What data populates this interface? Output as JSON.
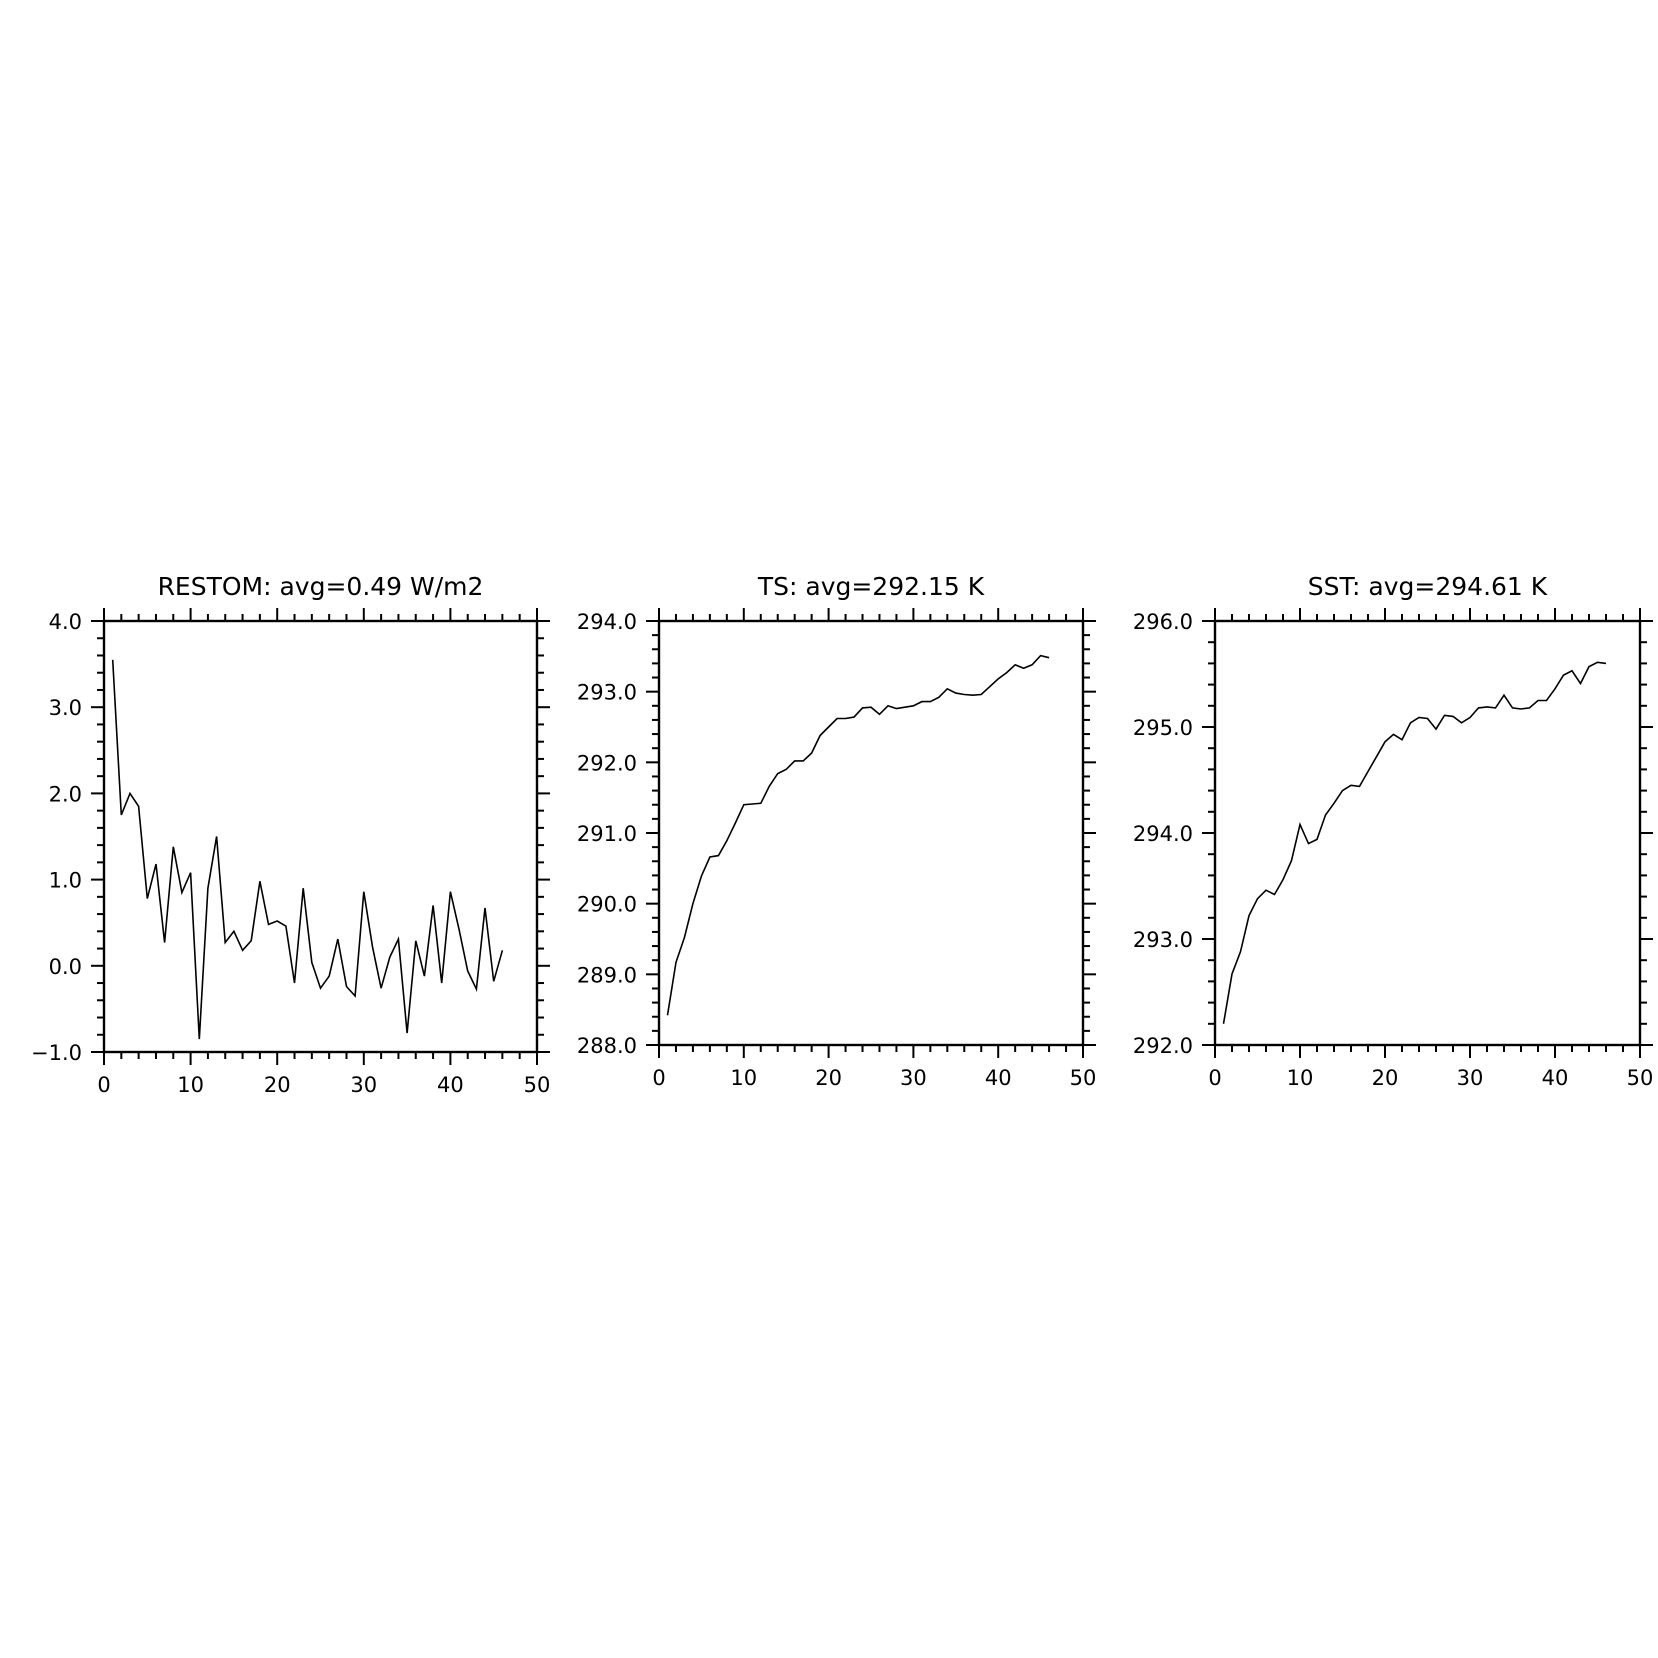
{
  "chart_data": [
    {
      "type": "line",
      "title": "RESTOM: avg=0.49 W/m2",
      "xlabel": "",
      "ylabel": "",
      "xlim": [
        0,
        50
      ],
      "ylim": [
        -1.0,
        4.0
      ],
      "xticks": [
        0,
        10,
        20,
        30,
        40,
        50
      ],
      "xtick_labels": [
        "0",
        "10",
        "20",
        "30",
        "40",
        "50"
      ],
      "yticks": [
        -1.0,
        0.0,
        1.0,
        2.0,
        3.0,
        4.0
      ],
      "ytick_labels": [
        "−1.0",
        "0.0",
        "1.0",
        "2.0",
        "3.0",
        "4.0"
      ],
      "grid": false,
      "legend": "none",
      "series": [
        {
          "x": [
            1,
            2,
            3,
            4,
            5,
            6,
            7,
            8,
            9,
            10,
            11,
            12,
            13,
            14,
            15,
            16,
            17,
            18,
            19,
            20,
            21,
            22,
            23,
            24,
            25,
            26,
            27,
            28,
            29,
            30,
            31,
            32,
            33,
            34,
            35,
            36,
            37,
            38,
            39,
            40,
            41,
            42,
            43,
            44,
            45,
            46
          ],
          "values": [
            3.55,
            1.75,
            2.0,
            1.85,
            0.78,
            1.18,
            0.27,
            1.38,
            0.85,
            1.08,
            -0.85,
            0.9,
            1.5,
            0.27,
            0.4,
            0.18,
            0.29,
            0.98,
            0.48,
            0.52,
            0.46,
            -0.2,
            0.9,
            0.04,
            -0.26,
            -0.12,
            0.31,
            -0.24,
            -0.35,
            0.86,
            0.22,
            -0.26,
            0.1,
            0.31,
            -0.78,
            0.29,
            -0.12,
            0.7,
            -0.2,
            0.86,
            0.42,
            -0.06,
            -0.27,
            0.67,
            -0.18,
            0.18
          ]
        }
      ]
    },
    {
      "type": "line",
      "title": "TS: avg=292.15 K",
      "xlabel": "",
      "ylabel": "",
      "xlim": [
        0,
        50
      ],
      "ylim": [
        288.0,
        294.0
      ],
      "xticks": [
        0,
        10,
        20,
        30,
        40,
        50
      ],
      "xtick_labels": [
        "0",
        "10",
        "20",
        "30",
        "40",
        "50"
      ],
      "yticks": [
        288.0,
        289.0,
        290.0,
        291.0,
        292.0,
        293.0,
        294.0
      ],
      "ytick_labels": [
        "288.0",
        "289.0",
        "290.0",
        "291.0",
        "292.0",
        "293.0",
        "294.0"
      ],
      "grid": false,
      "legend": "none",
      "series": [
        {
          "x": [
            1,
            2,
            3,
            4,
            5,
            6,
            7,
            8,
            9,
            10,
            11,
            12,
            13,
            14,
            15,
            16,
            17,
            18,
            19,
            20,
            21,
            22,
            23,
            24,
            25,
            26,
            27,
            28,
            29,
            30,
            31,
            32,
            33,
            34,
            35,
            36,
            37,
            38,
            39,
            40,
            41,
            42,
            43,
            44,
            45,
            46
          ],
          "values": [
            288.42,
            289.17,
            289.52,
            290.0,
            290.39,
            290.66,
            290.68,
            290.89,
            291.14,
            291.4,
            291.41,
            291.42,
            291.66,
            291.84,
            291.9,
            292.02,
            292.02,
            292.13,
            292.38,
            292.5,
            292.62,
            292.62,
            292.64,
            292.77,
            292.78,
            292.68,
            292.8,
            292.76,
            292.78,
            292.8,
            292.86,
            292.86,
            292.92,
            293.04,
            292.98,
            292.96,
            292.95,
            292.96,
            293.07,
            293.18,
            293.27,
            293.38,
            293.33,
            293.38,
            293.51,
            293.48
          ]
        }
      ]
    },
    {
      "type": "line",
      "title": "SST: avg=294.61 K",
      "xlabel": "",
      "ylabel": "",
      "xlim": [
        0,
        50
      ],
      "ylim": [
        292.0,
        296.0
      ],
      "xticks": [
        0,
        10,
        20,
        30,
        40,
        50
      ],
      "xtick_labels": [
        "0",
        "10",
        "20",
        "30",
        "40",
        "50"
      ],
      "yticks": [
        292.0,
        293.0,
        294.0,
        295.0,
        296.0
      ],
      "ytick_labels": [
        "292.0",
        "293.0",
        "294.0",
        "295.0",
        "296.0"
      ],
      "grid": false,
      "legend": "none",
      "series": [
        {
          "x": [
            1,
            2,
            3,
            4,
            5,
            6,
            7,
            8,
            9,
            10,
            11,
            12,
            13,
            14,
            15,
            16,
            17,
            18,
            19,
            20,
            21,
            22,
            23,
            24,
            25,
            26,
            27,
            28,
            29,
            30,
            31,
            32,
            33,
            34,
            35,
            36,
            37,
            38,
            39,
            40,
            41,
            42,
            43,
            44,
            45,
            46
          ],
          "values": [
            292.2,
            292.67,
            292.88,
            293.22,
            293.38,
            293.46,
            293.42,
            293.56,
            293.74,
            294.08,
            293.9,
            293.94,
            294.17,
            294.28,
            294.4,
            294.45,
            294.44,
            294.58,
            294.72,
            294.86,
            294.93,
            294.88,
            295.04,
            295.09,
            295.08,
            294.98,
            295.11,
            295.1,
            295.04,
            295.09,
            295.18,
            295.19,
            295.18,
            295.3,
            295.18,
            295.17,
            295.18,
            295.25,
            295.25,
            295.36,
            295.49,
            295.53,
            295.41,
            295.57,
            295.61,
            295.6
          ]
        }
      ]
    }
  ]
}
